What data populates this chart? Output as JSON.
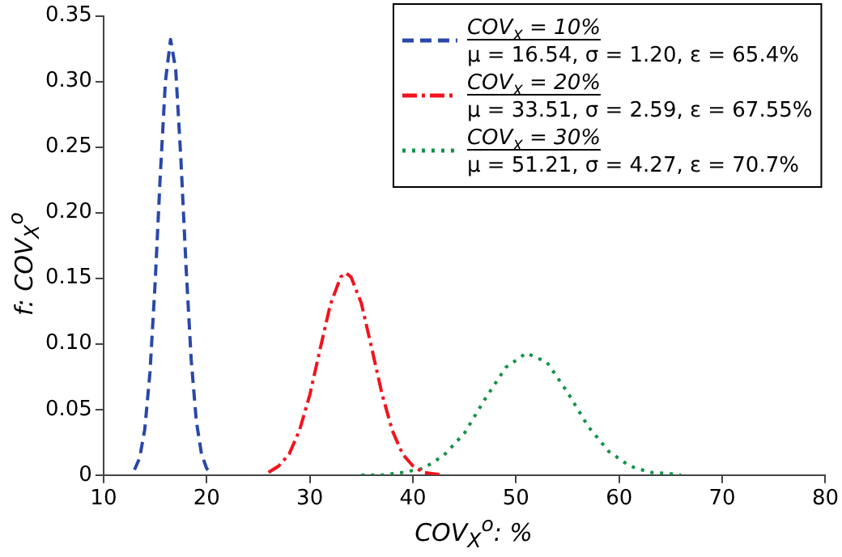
{
  "chart_data": {
    "type": "line",
    "xlabel": "COV$_{X}$$^{o}$: %",
    "ylabel": "f: COV$_{X}$$^{o}$",
    "xlim": [
      10,
      80
    ],
    "xticks": [
      10,
      20,
      30,
      40,
      50,
      60,
      70,
      80
    ],
    "ylim": [
      0,
      0.35
    ],
    "yticks": [
      0,
      {
        "value": 0.05,
        "label": "0.05"
      },
      {
        "value": 0.1,
        "label": "0.10"
      },
      {
        "value": 0.15,
        "label": "0.15"
      },
      {
        "value": 0.2,
        "label": "0.20"
      },
      {
        "value": 0.25,
        "label": "0.25"
      },
      {
        "value": 0.3,
        "label": "0.30"
      },
      {
        "value": 0.35,
        "label": "0.35"
      }
    ],
    "grid": false,
    "legend": "top right",
    "marker": "none",
    "series": [
      {
        "name": "COV$_{X}$ = 10%\nμ = 16.54, σ = 1.20, ε = 65.4%",
        "color": "#2a48a8",
        "line_style": "dashed",
        "x": [
          13,
          13.5,
          14,
          14.5,
          15,
          15.5,
          16,
          16.5,
          17,
          17.5,
          18,
          18.5,
          19,
          19.5,
          20,
          20.5
        ],
        "values": [
          0.004,
          0.013,
          0.035,
          0.078,
          0.146,
          0.228,
          0.3,
          0.332,
          0.309,
          0.241,
          0.159,
          0.088,
          0.041,
          0.016,
          0.005,
          0.001
        ]
      },
      {
        "name": "COV$_{X}$ = 20%\nμ = 33.51, σ = 2.59, ε = 67.55%",
        "color": "#f0141e",
        "line_style": "dashdot",
        "x": [
          26,
          27,
          28,
          29,
          30,
          31,
          32,
          33,
          33.5,
          34,
          35,
          36,
          37,
          38,
          39,
          40,
          41,
          42,
          43
        ],
        "values": [
          0.002,
          0.007,
          0.016,
          0.034,
          0.061,
          0.096,
          0.13,
          0.151,
          0.154,
          0.151,
          0.131,
          0.097,
          0.062,
          0.034,
          0.016,
          0.007,
          0.002,
          0.001,
          0.0
        ]
      },
      {
        "name": "COV$_{X}$ = 30%\nμ = 51.21, σ = 4.27, ε = 70.7%",
        "color": "#139048",
        "line_style": "dotted",
        "x": [
          35,
          37,
          39,
          41,
          43,
          45,
          47,
          49,
          51,
          53,
          55,
          57,
          59,
          61,
          63,
          65,
          66
        ],
        "values": [
          0.0,
          0.0,
          0.002,
          0.005,
          0.015,
          0.032,
          0.058,
          0.082,
          0.093,
          0.086,
          0.063,
          0.037,
          0.018,
          0.007,
          0.002,
          0.001,
          0.0
        ]
      }
    ]
  }
}
